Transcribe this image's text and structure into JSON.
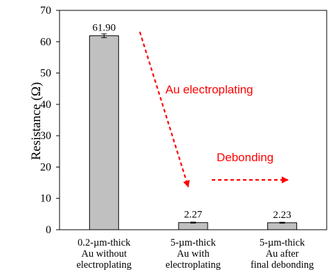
{
  "chart_data": {
    "type": "bar",
    "title": "",
    "xlabel": "",
    "ylabel": "Resistance (Ω)",
    "ylim": [
      0,
      70
    ],
    "yticks": [
      0,
      10,
      20,
      30,
      40,
      50,
      60,
      70
    ],
    "grid": false,
    "categories": [
      [
        "0.2-µm-thick",
        "Au without",
        "electroplating"
      ],
      [
        "5-µm-thick",
        "Au with",
        "electroplating"
      ],
      [
        "5-µm-thick",
        "Au after",
        "final debonding"
      ]
    ],
    "values": [
      61.9,
      2.27,
      2.23
    ],
    "value_labels": [
      "61.90",
      "2.27",
      "2.23"
    ],
    "error_bars": [
      0.6,
      0.15,
      0.15
    ],
    "bar_color": "#c0c0c0",
    "annotations": [
      {
        "text": "Au electroplating",
        "color": "#ff0000"
      },
      {
        "text": "Debonding",
        "color": "#ff0000"
      }
    ]
  }
}
